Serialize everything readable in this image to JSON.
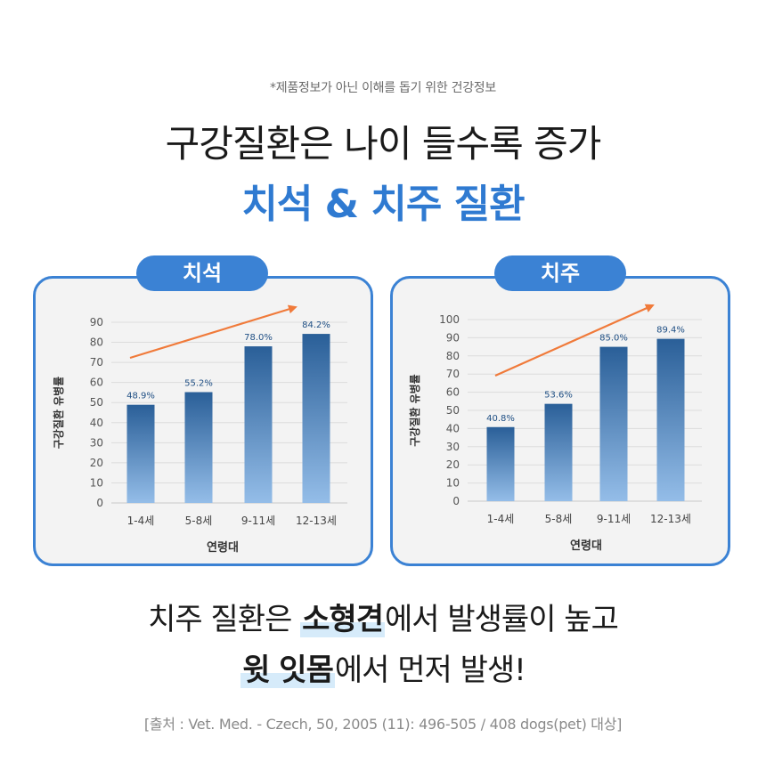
{
  "header": {
    "disclaimer": "*제품정보가 아닌 이해를 돕기 위한 건강정보",
    "title_line1": "구강질환은 나이 들수록 증가",
    "title_line2": "치석 & 치주 질환"
  },
  "colors": {
    "accent": "#3b82d4",
    "panel_bg": "#f3f3f3",
    "trend_arrow": "#f07a3a",
    "bar_light": "#94bde8",
    "bar_dark": "#2a5f98"
  },
  "chart_data": [
    {
      "type": "bar",
      "title": "치석",
      "categories": [
        "1-4세",
        "5-8세",
        "9-11세",
        "12-13세"
      ],
      "values": [
        48.9,
        55.2,
        78.0,
        84.2
      ],
      "value_labels": [
        "48.9%",
        "55.2%",
        "78.0%",
        "84.2%"
      ],
      "xlabel": "연령대",
      "ylabel": "구강질환 유병률",
      "ylim": [
        0,
        90
      ],
      "yticks": [
        0,
        10,
        20,
        30,
        40,
        50,
        60,
        70,
        80,
        90
      ],
      "grid": true,
      "trend_arrow": true
    },
    {
      "type": "bar",
      "title": "치주",
      "categories": [
        "1-4세",
        "5-8세",
        "9-11세",
        "12-13세"
      ],
      "values": [
        40.8,
        53.6,
        85.0,
        89.4
      ],
      "value_labels": [
        "40.8%",
        "53.6%",
        "85.0%",
        "89.4%"
      ],
      "xlabel": "연령대",
      "ylabel": "구강질환 유병률",
      "ylim": [
        0,
        100
      ],
      "yticks": [
        0,
        10,
        20,
        30,
        40,
        50,
        60,
        70,
        80,
        90,
        100
      ],
      "grid": true,
      "trend_arrow": true
    }
  ],
  "summary": {
    "line1_pre": "치주 질환은 ",
    "line1_highlight": "소형견",
    "line1_post": "에서 발생률이 높고",
    "line2_highlight": "윗 잇몸",
    "line2_post": "에서 먼저 발생!"
  },
  "source": "[출처 : Vet. Med. - Czech, 50, 2005 (11): 496-505 / 408 dogs(pet) 대상]"
}
